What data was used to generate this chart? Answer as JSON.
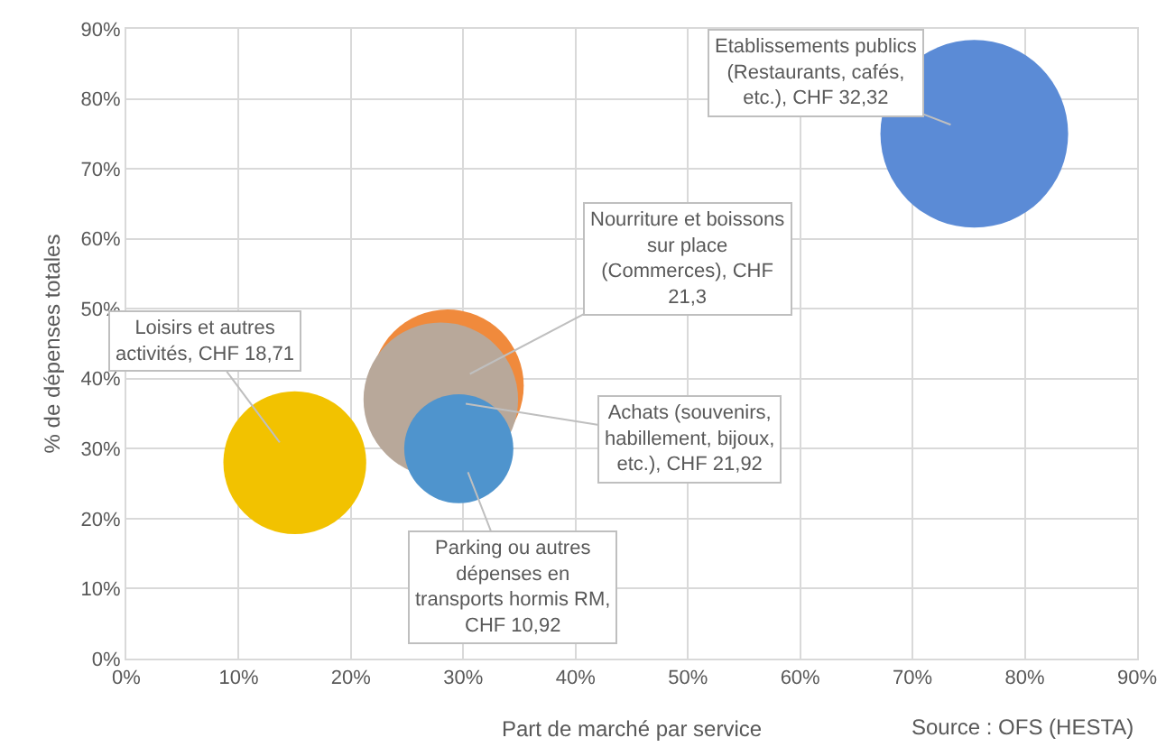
{
  "chart_data": {
    "type": "bubble",
    "xlabel": "Part de marché par service",
    "ylabel": "% de dépenses totales",
    "xlim": [
      0,
      90
    ],
    "ylim": [
      0,
      90
    ],
    "xticks": [
      {
        "value": 0,
        "label": "0%"
      },
      {
        "value": 10,
        "label": "10%"
      },
      {
        "value": 20,
        "label": "20%"
      },
      {
        "value": 30,
        "label": "30%"
      },
      {
        "value": 40,
        "label": "40%"
      },
      {
        "value": 50,
        "label": "50%"
      },
      {
        "value": 60,
        "label": "60%"
      },
      {
        "value": 70,
        "label": "70%"
      },
      {
        "value": 80,
        "label": "80%"
      },
      {
        "value": 90,
        "label": "90%"
      }
    ],
    "yticks": [
      {
        "value": 0,
        "label": "0%"
      },
      {
        "value": 10,
        "label": "10%"
      },
      {
        "value": 20,
        "label": "20%"
      },
      {
        "value": 30,
        "label": "30%"
      },
      {
        "value": 40,
        "label": "40%"
      },
      {
        "value": 50,
        "label": "50%"
      },
      {
        "value": 60,
        "label": "60%"
      },
      {
        "value": 70,
        "label": "70%"
      },
      {
        "value": 80,
        "label": "80%"
      },
      {
        "value": 90,
        "label": "90%"
      }
    ],
    "grid": true,
    "x": [
      75.5,
      28.6,
      28,
      15,
      29.6
    ],
    "values": [
      75,
      39,
      37,
      28,
      30
    ],
    "sizes": [
      1,
      0.659,
      0.678,
      0.579,
      0.338
    ],
    "colors": [
      "#5b8bd6",
      "#f08a3c",
      "#b8a89a",
      "#f2c200",
      "#4f94cd"
    ],
    "value_labels": [
      "Etablissements publics\n(Restaurants, cafés,\netc.), CHF 32,32",
      "Nourriture et boissons\nsur place\n(Commerces), CHF\n21,3",
      "Achats (souvenirs,\nhabillement, bijoux,\netc.), CHF 21,92",
      "Loisirs et autres\nactivités, CHF 18,71",
      "Parking ou autres\ndépenses en\ntransports hormis RM,\nCHF 10,92"
    ],
    "annotations": [
      "Source : OFS (HESTA)"
    ]
  }
}
